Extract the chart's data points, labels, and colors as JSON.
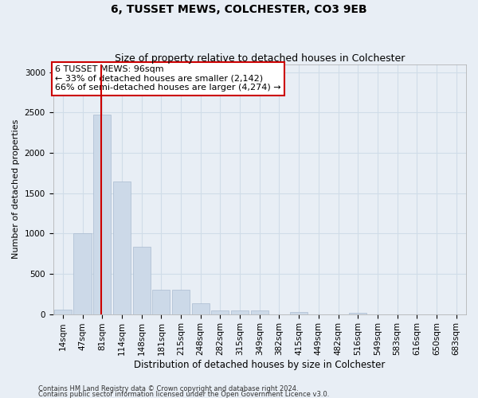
{
  "title1": "6, TUSSET MEWS, COLCHESTER, CO3 9EB",
  "title2": "Size of property relative to detached houses in Colchester",
  "xlabel": "Distribution of detached houses by size in Colchester",
  "ylabel": "Number of detached properties",
  "footer1": "Contains HM Land Registry data © Crown copyright and database right 2024.",
  "footer2": "Contains public sector information licensed under the Open Government Licence v3.0.",
  "bar_color": "#ccd9e8",
  "bar_edge_color": "#aabbd0",
  "bin_labels": [
    "14sqm",
    "47sqm",
    "81sqm",
    "114sqm",
    "148sqm",
    "181sqm",
    "215sqm",
    "248sqm",
    "282sqm",
    "315sqm",
    "349sqm",
    "382sqm",
    "415sqm",
    "449sqm",
    "482sqm",
    "516sqm",
    "549sqm",
    "583sqm",
    "616sqm",
    "650sqm",
    "683sqm"
  ],
  "bar_values": [
    60,
    1000,
    2470,
    1650,
    840,
    300,
    300,
    130,
    50,
    45,
    50,
    0,
    30,
    0,
    0,
    20,
    0,
    0,
    0,
    0,
    0
  ],
  "property_bin_index": 2,
  "red_line_color": "#cc0000",
  "annotation_text": "6 TUSSET MEWS: 96sqm\n← 33% of detached houses are smaller (2,142)\n66% of semi-detached houses are larger (4,274) →",
  "annotation_box_color": "#ffffff",
  "annotation_box_edge_color": "#cc0000",
  "ylim": [
    0,
    3100
  ],
  "yticks": [
    0,
    500,
    1000,
    1500,
    2000,
    2500,
    3000
  ],
  "grid_color": "#d0dce8",
  "bg_color": "#e8eef5",
  "title1_fontsize": 10,
  "title2_fontsize": 9,
  "xlabel_fontsize": 8.5,
  "ylabel_fontsize": 8,
  "tick_fontsize": 7.5,
  "footer_fontsize": 6,
  "annotation_fontsize": 8
}
